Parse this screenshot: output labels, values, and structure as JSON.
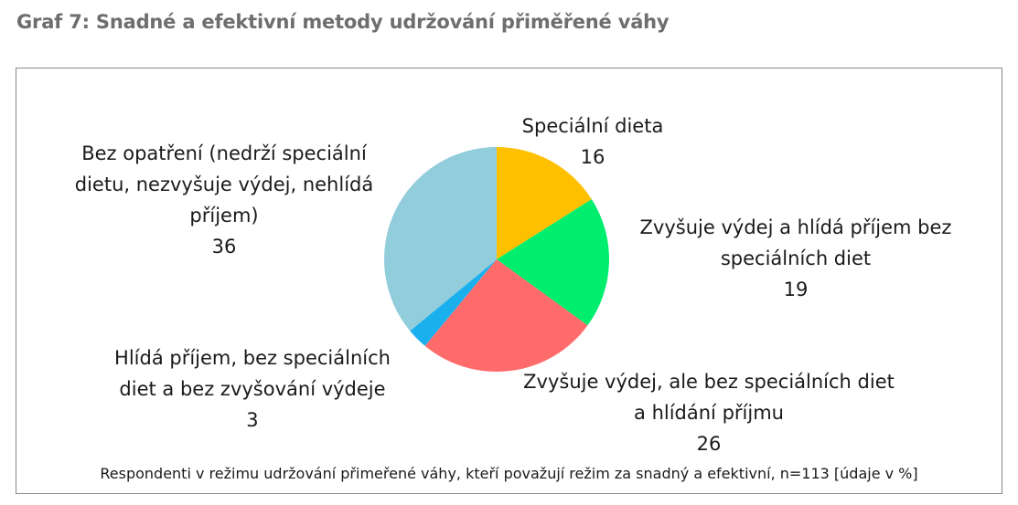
{
  "page_title": "Graf 7: Snadné a efektivní metody udržování přiměřené váhy",
  "chart_data": {
    "type": "pie",
    "title": "Graf 7: Snadné a efektivní metody udržování přiměřené váhy",
    "footnote": "Respondenti v režimu udržování přimeřené váhy, kteří považují režim za snadný a efektivní, n=113 [údaje v %]",
    "start_angle_deg": 0,
    "direction": "clockwise",
    "slices": [
      {
        "label_lines": [
          "Speciální dieta"
        ],
        "value": 16,
        "color": "#FFC000"
      },
      {
        "label_lines": [
          "Zvyšuje výdej a hlídá příjem bez",
          "speciálních diet"
        ],
        "value": 19,
        "color": "#00EE6E"
      },
      {
        "label_lines": [
          "Zvyšuje výdej, ale bez speciálních diet",
          "a hlídání příjmu"
        ],
        "value": 26,
        "color": "#FF6B6B"
      },
      {
        "label_lines": [
          "Hlídá příjem, bez speciálních",
          "diet a bez zvyšování výdeje"
        ],
        "value": 3,
        "color": "#1AB0EE"
      },
      {
        "label_lines": [
          "Bez opatření (nedrží speciální",
          "dietu, nezvyšuje výdej, nehlídá",
          "příjem)"
        ],
        "value": 36,
        "color": "#92CDDC"
      }
    ]
  }
}
